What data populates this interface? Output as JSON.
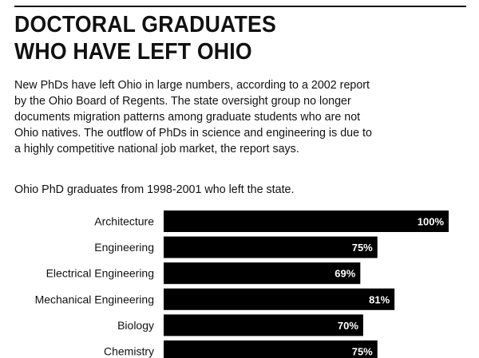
{
  "title_lines": [
    "DOCTORAL GRADUATES",
    "WHO HAVE LEFT OHIO"
  ],
  "intro_lines": [
    "New PhDs have left Ohio in large numbers, according to a 2002 report",
    "by the Ohio Board of Regents. The state oversight group no longer",
    "documents migration patterns among graduate students who are not",
    "Ohio natives. The outflow of PhDs in science and engineering is due to",
    "a highly competitive national job market, the report says."
  ],
  "chart_data": {
    "type": "bar",
    "orientation": "horizontal",
    "title": "DOCTORAL GRADUATES WHO HAVE LEFT OHIO",
    "subtitle": "Ohio PhD graduates from 1998-2001 who left the state.",
    "categories": [
      "Architecture",
      "Engineering",
      "Electrical Engineering",
      "Mechanical Engineering",
      "Biology",
      "Chemistry"
    ],
    "values": [
      100,
      75,
      69,
      81,
      70,
      75
    ],
    "value_labels": [
      "100%",
      "75%",
      "69%",
      "81%",
      "70%",
      "75%"
    ],
    "unit": "%",
    "xlim": [
      0,
      100
    ],
    "grid": false,
    "bar_color": "#000000",
    "label_color": "#ffffff"
  }
}
